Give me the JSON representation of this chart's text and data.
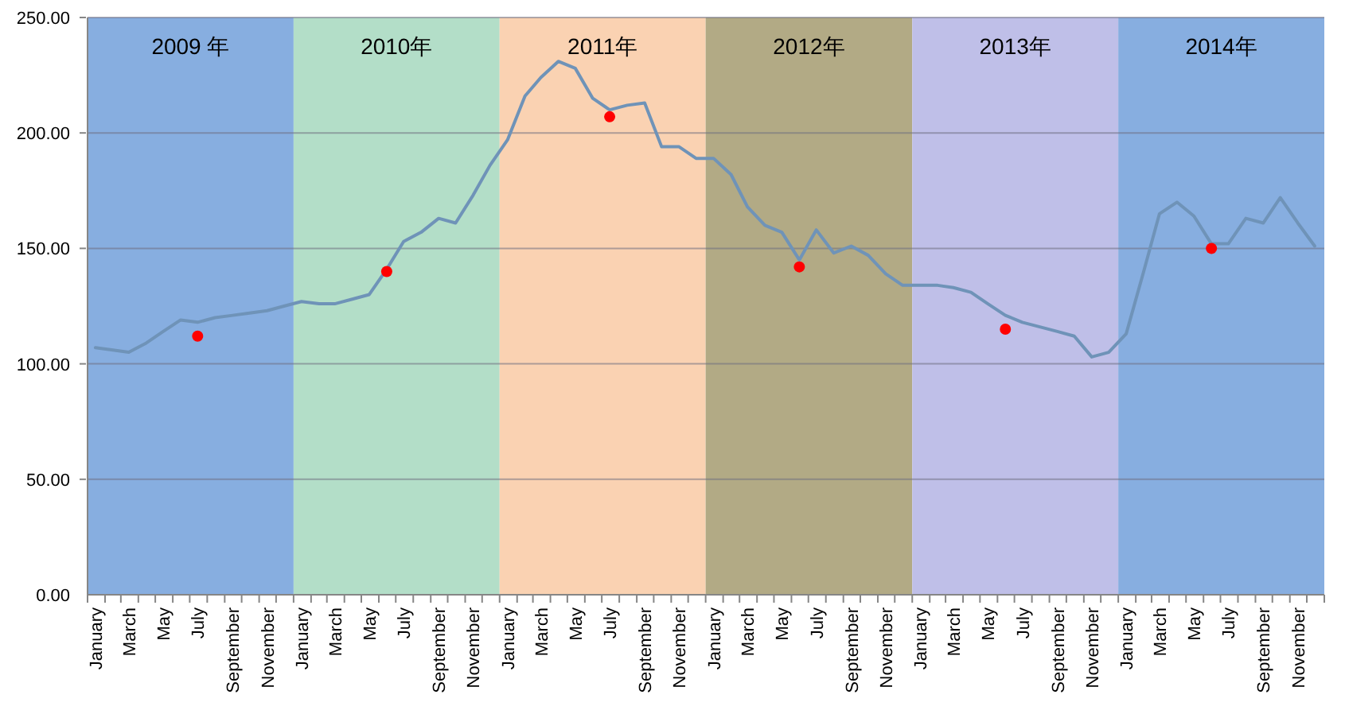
{
  "chart_data": {
    "type": "line",
    "x": [
      "2009-01-15",
      "2009-02-15",
      "2009-03-15",
      "2009-04-15",
      "2009-05-15",
      "2009-06-15",
      "2009-07-15",
      "2009-08-15",
      "2009-09-15",
      "2009-10-15",
      "2009-11-15",
      "2009-12-15",
      "2010-01-15",
      "2010-02-15",
      "2010-03-15",
      "2010-04-15",
      "2010-05-15",
      "2010-06-15",
      "2010-07-15",
      "2010-08-15",
      "2010-09-15",
      "2010-10-15",
      "2010-11-15",
      "2010-12-15",
      "2011-01-15",
      "2011-02-15",
      "2011-03-15",
      "2011-04-15",
      "2011-05-15",
      "2011-06-15",
      "2011-07-15",
      "2011-08-15",
      "2011-09-15",
      "2011-10-15",
      "2011-11-15",
      "2011-12-15",
      "2012-01-15",
      "2012-02-15",
      "2012-03-15",
      "2012-04-15",
      "2012-05-15",
      "2012-06-15",
      "2012-07-15",
      "2012-08-15",
      "2012-09-15",
      "2012-10-15",
      "2012-11-15",
      "2012-12-15",
      "2013-01-15",
      "2013-02-15",
      "2013-03-15",
      "2013-04-15",
      "2013-05-15",
      "2013-06-15",
      "2013-07-15",
      "2013-08-15",
      "2013-09-15",
      "2013-10-15",
      "2013-11-15",
      "2013-12-15",
      "2014-01-15",
      "2014-02-15",
      "2014-03-15",
      "2014-04-15",
      "2014-05-15",
      "2014-06-15",
      "2014-07-15",
      "2014-08-15",
      "2014-09-15",
      "2014-10-15",
      "2014-11-15",
      "2014-12-15"
    ],
    "xlim": [
      "2009-01",
      "2015-01"
    ],
    "xticks": [
      {
        "value": "2009-01",
        "label": null
      },
      {
        "value": "2009-01-15",
        "label": "January"
      },
      {
        "value": "2009-02",
        "label": null
      },
      {
        "value": "2009-03",
        "label": null
      },
      {
        "value": "2009-03-15",
        "label": "March"
      },
      {
        "value": "2009-04",
        "label": null
      },
      {
        "value": "2009-05",
        "label": null
      },
      {
        "value": "2009-05-15",
        "label": "May"
      },
      {
        "value": "2009-06",
        "label": null
      },
      {
        "value": "2009-07",
        "label": null
      },
      {
        "value": "2009-07-15",
        "label": "July"
      },
      {
        "value": "2009-08",
        "label": null
      },
      {
        "value": "2009-09",
        "label": null
      },
      {
        "value": "2009-09-15",
        "label": "September"
      },
      {
        "value": "2009-10",
        "label": null
      },
      {
        "value": "2009-11",
        "label": null
      },
      {
        "value": "2009-11-15",
        "label": "November"
      },
      {
        "value": "2009-12",
        "label": null
      },
      {
        "value": "2010-01",
        "label": null
      },
      {
        "value": "2010-01-15",
        "label": "January"
      },
      {
        "value": "2010-02",
        "label": null
      },
      {
        "value": "2010-03",
        "label": null
      },
      {
        "value": "2010-03-15",
        "label": "March"
      },
      {
        "value": "2010-04",
        "label": null
      },
      {
        "value": "2010-05",
        "label": null
      },
      {
        "value": "2010-05-15",
        "label": "May"
      },
      {
        "value": "2010-06",
        "label": null
      },
      {
        "value": "2010-07",
        "label": null
      },
      {
        "value": "2010-07-15",
        "label": "July"
      },
      {
        "value": "2010-08",
        "label": null
      },
      {
        "value": "2010-09",
        "label": null
      },
      {
        "value": "2010-09-15",
        "label": "September"
      },
      {
        "value": "2010-10",
        "label": null
      },
      {
        "value": "2010-11",
        "label": null
      },
      {
        "value": "2010-11-15",
        "label": "November"
      },
      {
        "value": "2010-12",
        "label": null
      },
      {
        "value": "2011-01",
        "label": null
      },
      {
        "value": "2011-01-15",
        "label": "January"
      },
      {
        "value": "2011-02",
        "label": null
      },
      {
        "value": "2011-03",
        "label": null
      },
      {
        "value": "2011-03-15",
        "label": "March"
      },
      {
        "value": "2011-04",
        "label": null
      },
      {
        "value": "2011-05",
        "label": null
      },
      {
        "value": "2011-05-15",
        "label": "May"
      },
      {
        "value": "2011-06",
        "label": null
      },
      {
        "value": "2011-07",
        "label": null
      },
      {
        "value": "2011-07-15",
        "label": "July"
      },
      {
        "value": "2011-08",
        "label": null
      },
      {
        "value": "2011-09",
        "label": null
      },
      {
        "value": "2011-09-15",
        "label": "September"
      },
      {
        "value": "2011-10",
        "label": null
      },
      {
        "value": "2011-11",
        "label": null
      },
      {
        "value": "2011-11-15",
        "label": "November"
      },
      {
        "value": "2011-12",
        "label": null
      },
      {
        "value": "2012-01",
        "label": null
      },
      {
        "value": "2012-01-15",
        "label": "January"
      },
      {
        "value": "2012-02",
        "label": null
      },
      {
        "value": "2012-03",
        "label": null
      },
      {
        "value": "2012-03-15",
        "label": "March"
      },
      {
        "value": "2012-04",
        "label": null
      },
      {
        "value": "2012-05",
        "label": null
      },
      {
        "value": "2012-05-15",
        "label": "May"
      },
      {
        "value": "2012-06",
        "label": null
      },
      {
        "value": "2012-07",
        "label": null
      },
      {
        "value": "2012-07-15",
        "label": "July"
      },
      {
        "value": "2012-08",
        "label": null
      },
      {
        "value": "2012-09",
        "label": null
      },
      {
        "value": "2012-09-15",
        "label": "September"
      },
      {
        "value": "2012-10",
        "label": null
      },
      {
        "value": "2012-11",
        "label": null
      },
      {
        "value": "2012-11-15",
        "label": "November"
      },
      {
        "value": "2012-12",
        "label": null
      },
      {
        "value": "2013-01",
        "label": null
      },
      {
        "value": "2013-01-15",
        "label": "January"
      },
      {
        "value": "2013-02",
        "label": null
      },
      {
        "value": "2013-03",
        "label": null
      },
      {
        "value": "2013-03-15",
        "label": "March"
      },
      {
        "value": "2013-04",
        "label": null
      },
      {
        "value": "2013-05",
        "label": null
      },
      {
        "value": "2013-05-15",
        "label": "May"
      },
      {
        "value": "2013-06",
        "label": null
      },
      {
        "value": "2013-07",
        "label": null
      },
      {
        "value": "2013-07-15",
        "label": "July"
      },
      {
        "value": "2013-08",
        "label": null
      },
      {
        "value": "2013-09",
        "label": null
      },
      {
        "value": "2013-09-15",
        "label": "September"
      },
      {
        "value": "2013-10",
        "label": null
      },
      {
        "value": "2013-11",
        "label": null
      },
      {
        "value": "2013-11-15",
        "label": "November"
      },
      {
        "value": "2013-12",
        "label": null
      },
      {
        "value": "2014-01",
        "label": null
      },
      {
        "value": "2014-01-15",
        "label": "January"
      },
      {
        "value": "2014-02",
        "label": null
      },
      {
        "value": "2014-03",
        "label": null
      },
      {
        "value": "2014-03-15",
        "label": "March"
      },
      {
        "value": "2014-04",
        "label": null
      },
      {
        "value": "2014-05",
        "label": null
      },
      {
        "value": "2014-05-15",
        "label": "May"
      },
      {
        "value": "2014-06",
        "label": null
      },
      {
        "value": "2014-07",
        "label": null
      },
      {
        "value": "2014-07-15",
        "label": "July"
      },
      {
        "value": "2014-08",
        "label": null
      },
      {
        "value": "2014-09",
        "label": null
      },
      {
        "value": "2014-09-15",
        "label": "September"
      },
      {
        "value": "2014-10",
        "label": null
      },
      {
        "value": "2014-11",
        "label": null
      },
      {
        "value": "2014-11-15",
        "label": "November"
      },
      {
        "value": "2014-12",
        "label": null
      },
      {
        "value": "2015-01",
        "label": null
      }
    ],
    "ylim": [
      0,
      250
    ],
    "yticks": [
      {
        "value": 0,
        "label": "0.00"
      },
      {
        "value": 50,
        "label": "50.00"
      },
      {
        "value": 100,
        "label": "100.00"
      },
      {
        "value": 150,
        "label": "150.00"
      },
      {
        "value": 200,
        "label": "200.00"
      },
      {
        "value": 250,
        "label": "250.00"
      }
    ],
    "grid": "y",
    "bands": [
      {
        "axis": "x",
        "from": "2009-01",
        "to": "2010-01",
        "label": "2009 年",
        "color": "#87aee0"
      },
      {
        "axis": "x",
        "from": "2010-01",
        "to": "2011-01",
        "label": "2010年",
        "color": "#b3dec8"
      },
      {
        "axis": "x",
        "from": "2011-01",
        "to": "2012-01",
        "label": "2011年",
        "color": "#fad2b2"
      },
      {
        "axis": "x",
        "from": "2012-01",
        "to": "2013-01",
        "label": "2012年",
        "color": "#b2aa85"
      },
      {
        "axis": "x",
        "from": "2013-01",
        "to": "2014-01",
        "label": "2013年",
        "color": "#bfbfe8"
      },
      {
        "axis": "x",
        "from": "2014-01",
        "to": "2015-01",
        "label": "2014年",
        "color": "#87aee0"
      }
    ],
    "series": [
      {
        "color": "#6f93b8",
        "values": [
          107,
          106,
          105,
          109,
          114,
          119,
          118,
          120,
          121,
          122,
          123,
          125,
          127,
          126,
          126,
          128,
          130,
          141,
          153,
          157,
          163,
          161,
          173,
          186,
          197,
          216,
          224,
          231,
          228,
          215,
          210,
          212,
          213,
          194,
          194,
          189,
          189,
          182,
          168,
          160,
          157,
          145,
          158,
          148,
          151,
          147,
          139,
          134,
          134,
          134,
          133,
          131,
          126,
          121,
          118,
          116,
          114,
          112,
          103,
          105,
          113,
          140,
          165,
          170,
          164,
          152,
          152,
          163,
          161,
          172,
          161,
          151
        ]
      },
      {
        "type": "scatter",
        "color": "#ff0000",
        "marker": "circle",
        "x": [
          "2009-07-15",
          "2010-06-15",
          "2011-07-15",
          "2012-06-15",
          "2013-06-15",
          "2014-06-15"
        ],
        "values": [
          112,
          140,
          207,
          142,
          115,
          150
        ]
      }
    ]
  }
}
